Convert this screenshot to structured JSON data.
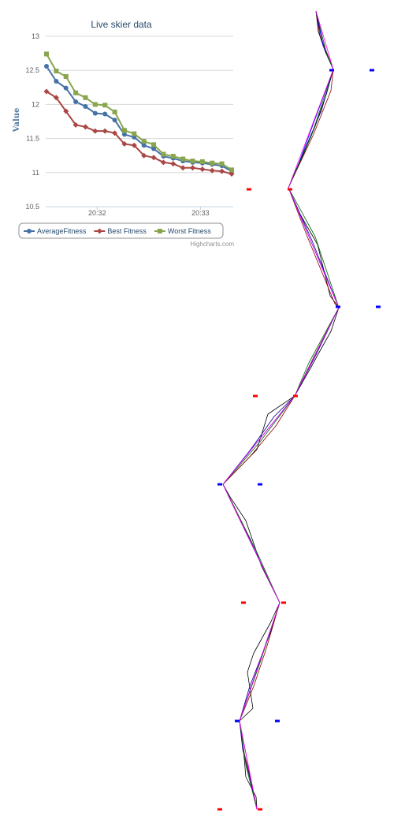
{
  "chart_data": {
    "type": "line",
    "title": "Live skier data",
    "ylabel": "Value",
    "xlabel": "",
    "ylim": [
      10.5,
      13
    ],
    "yticks": [
      10.5,
      11,
      11.5,
      12,
      12.5,
      13
    ],
    "ytick_labels": [
      "10.5",
      "11",
      "11.5",
      "12",
      "12.5",
      "13"
    ],
    "xticks": [
      {
        "label": "20:32",
        "index": 5.2
      },
      {
        "label": "20:33",
        "index": 15.8
      }
    ],
    "grid": true,
    "legend": "bottom",
    "credits": "Highcharts.com",
    "series": [
      {
        "name": "AverageFitness",
        "color": "#4572a7",
        "marker": "circle",
        "values": [
          12.56,
          12.34,
          12.24,
          12.04,
          11.97,
          11.87,
          11.86,
          11.77,
          11.56,
          11.52,
          11.4,
          11.35,
          11.24,
          11.21,
          11.17,
          11.15,
          11.14,
          11.12,
          11.1,
          11.02
        ]
      },
      {
        "name": "Best Fitness",
        "color": "#aa4643",
        "marker": "diamond",
        "values": [
          12.19,
          12.1,
          11.9,
          11.7,
          11.67,
          11.61,
          11.61,
          11.58,
          11.42,
          11.4,
          11.25,
          11.22,
          11.15,
          11.13,
          11.07,
          11.07,
          11.05,
          11.03,
          11.02,
          10.98
        ]
      },
      {
        "name": "Worst Fitness",
        "color": "#89a54e",
        "marker": "square",
        "values": [
          12.74,
          12.49,
          12.41,
          12.17,
          12.1,
          12.0,
          11.99,
          11.89,
          11.62,
          11.57,
          11.46,
          11.41,
          11.27,
          11.24,
          11.2,
          11.17,
          11.16,
          11.14,
          11.13,
          11.04
        ]
      }
    ]
  },
  "gates": [
    {
      "color": "#ff0000",
      "left": {
        "x": 316,
        "y": 240
      },
      "right": {
        "x": 368,
        "y": 240
      }
    },
    {
      "color": "#0000ff",
      "left": {
        "x": 421,
        "y": 89
      },
      "right": {
        "x": 472,
        "y": 89
      }
    },
    {
      "color": "#0000ff",
      "left": {
        "x": 429,
        "y": 389
      },
      "right": {
        "x": 480,
        "y": 389
      }
    },
    {
      "color": "#ff0000",
      "left": {
        "x": 324,
        "y": 502
      },
      "right": {
        "x": 375,
        "y": 502
      }
    },
    {
      "color": "#0000ff",
      "left": {
        "x": 279,
        "y": 614
      },
      "right": {
        "x": 330,
        "y": 614
      }
    },
    {
      "color": "#ff0000",
      "left": {
        "x": 309,
        "y": 764
      },
      "right": {
        "x": 360,
        "y": 764
      }
    },
    {
      "color": "#0000ff",
      "left": {
        "x": 301,
        "y": 914
      },
      "right": {
        "x": 352,
        "y": 914
      }
    },
    {
      "color": "#ff0000",
      "left": {
        "x": 279,
        "y": 1026
      },
      "right": {
        "x": 330,
        "y": 1026
      }
    }
  ],
  "trajectories": [
    {
      "color": "#000000",
      "points": [
        [
          401,
          14
        ],
        [
          404,
          40
        ],
        [
          413,
          66
        ],
        [
          423,
          88
        ],
        [
          414,
          120
        ],
        [
          400,
          160
        ],
        [
          385,
          196
        ],
        [
          366,
          238
        ],
        [
          380,
          270
        ],
        [
          403,
          310
        ],
        [
          419,
          375
        ],
        [
          430,
          390
        ],
        [
          420,
          420
        ],
        [
          406,
          445
        ],
        [
          395,
          465
        ],
        [
          374,
          502
        ],
        [
          340,
          525
        ],
        [
          326,
          570
        ],
        [
          283,
          614
        ],
        [
          292,
          630
        ],
        [
          312,
          660
        ],
        [
          332,
          718
        ],
        [
          355,
          764
        ],
        [
          343,
          790
        ],
        [
          322,
          828
        ],
        [
          314,
          852
        ],
        [
          321,
          898
        ],
        [
          304,
          914
        ],
        [
          309,
          950
        ],
        [
          312,
          985
        ],
        [
          325,
          1010
        ],
        [
          326,
          1026
        ]
      ]
    },
    {
      "color": "#00008b",
      "points": [
        [
          401,
          14
        ],
        [
          409,
          52
        ],
        [
          423,
          88
        ],
        [
          408,
          140
        ],
        [
          366,
          238
        ],
        [
          396,
          305
        ],
        [
          430,
          390
        ],
        [
          401,
          450
        ],
        [
          374,
          502
        ],
        [
          348,
          528
        ],
        [
          318,
          570
        ],
        [
          283,
          614
        ],
        [
          306,
          660
        ],
        [
          334,
          720
        ],
        [
          355,
          764
        ],
        [
          344,
          800
        ],
        [
          317,
          870
        ],
        [
          304,
          914
        ],
        [
          308,
          950
        ],
        [
          318,
          990
        ],
        [
          326,
          1026
        ]
      ]
    },
    {
      "color": "#8b0000",
      "points": [
        [
          401,
          14
        ],
        [
          406,
          45
        ],
        [
          423,
          88
        ],
        [
          420,
          115
        ],
        [
          398,
          170
        ],
        [
          366,
          238
        ],
        [
          390,
          300
        ],
        [
          425,
          385
        ],
        [
          430,
          390
        ],
        [
          397,
          455
        ],
        [
          374,
          502
        ],
        [
          350,
          540
        ],
        [
          318,
          578
        ],
        [
          283,
          614
        ],
        [
          300,
          650
        ],
        [
          330,
          712
        ],
        [
          355,
          764
        ],
        [
          338,
          822
        ],
        [
          322,
          870
        ],
        [
          304,
          914
        ],
        [
          310,
          955
        ],
        [
          320,
          995
        ],
        [
          326,
          1026
        ]
      ]
    },
    {
      "color": "#0000ff",
      "points": [
        [
          401,
          14
        ],
        [
          410,
          58
        ],
        [
          423,
          88
        ],
        [
          380,
          205
        ],
        [
          366,
          238
        ],
        [
          430,
          390
        ],
        [
          374,
          502
        ],
        [
          283,
          614
        ],
        [
          355,
          764
        ],
        [
          304,
          914
        ],
        [
          326,
          1026
        ]
      ]
    },
    {
      "color": "#006400",
      "points": [
        [
          401,
          14
        ],
        [
          415,
          70
        ],
        [
          423,
          88
        ],
        [
          396,
          170
        ],
        [
          366,
          238
        ],
        [
          400,
          300
        ],
        [
          430,
          390
        ],
        [
          392,
          460
        ],
        [
          374,
          502
        ],
        [
          330,
          560
        ],
        [
          283,
          614
        ],
        [
          326,
          700
        ],
        [
          355,
          764
        ],
        [
          330,
          840
        ],
        [
          304,
          914
        ],
        [
          312,
          970
        ],
        [
          326,
          1026
        ]
      ]
    },
    {
      "color": "#ff00ff",
      "points": [
        [
          401,
          14
        ],
        [
          423,
          88
        ],
        [
          366,
          238
        ],
        [
          430,
          390
        ],
        [
          374,
          502
        ],
        [
          283,
          614
        ],
        [
          355,
          764
        ],
        [
          304,
          914
        ],
        [
          326,
          1026
        ]
      ]
    }
  ]
}
